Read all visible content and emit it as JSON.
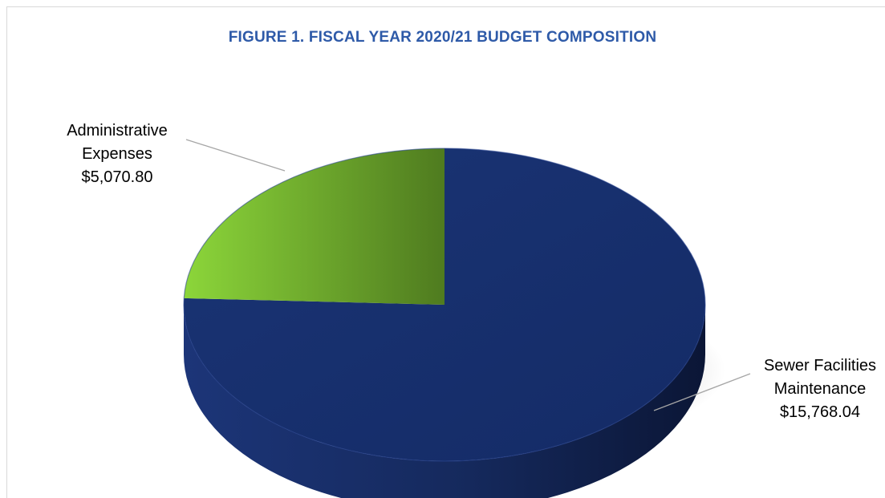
{
  "chart_data": {
    "type": "pie",
    "title": "FIGURE 1. FISCAL YEAR 2020/21 BUDGET COMPOSITION",
    "slices": [
      {
        "label_lines": [
          "Sewer Facilities",
          "Maintenance",
          "$15,768.04"
        ],
        "value": 15768.04,
        "color": "#172f6e"
      },
      {
        "label_lines": [
          "Administrative",
          "Expenses",
          "$5,070.80"
        ],
        "value": 5070.8,
        "color": "#6fab2b"
      }
    ],
    "legend": "none",
    "style": "3d"
  }
}
